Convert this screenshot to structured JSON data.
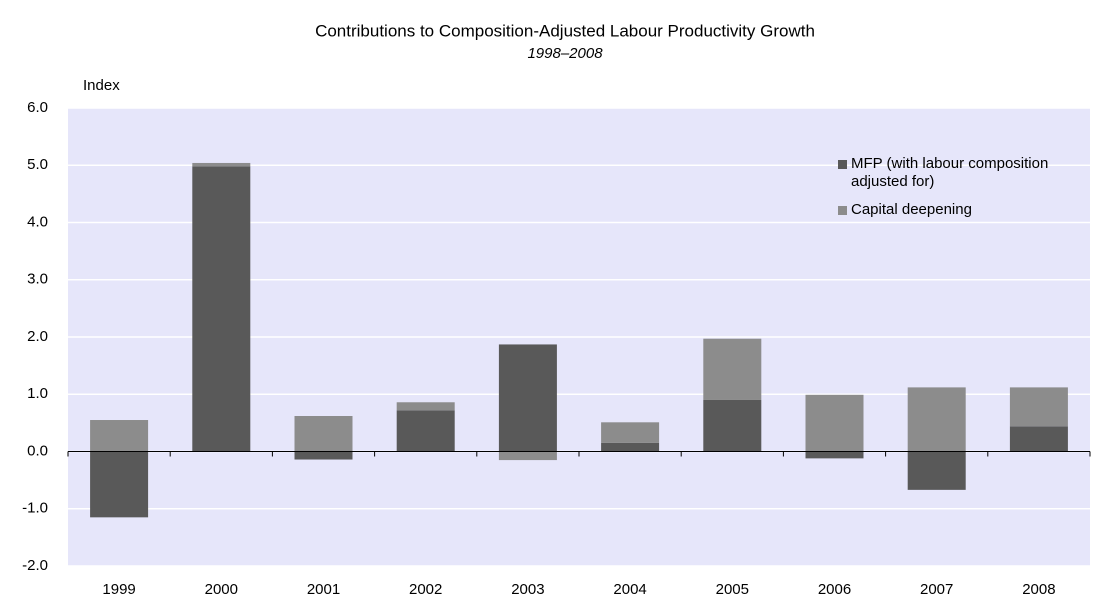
{
  "chart_data": {
    "type": "stacked_bar",
    "title": "Contributions to Composition-Adjusted Labour Productivity Growth",
    "subtitle": "1998–2008",
    "y_label": "Index",
    "categories": [
      "1999",
      "2000",
      "2001",
      "2002",
      "2003",
      "2004",
      "2005",
      "2006",
      "2007",
      "2008"
    ],
    "series": [
      {
        "name": "MFP (with labour composition adjusted for)",
        "color": "#595959",
        "values": [
          -1.15,
          4.98,
          -0.14,
          0.72,
          1.87,
          0.15,
          0.9,
          -0.12,
          -0.67,
          0.44
        ]
      },
      {
        "name": "Capital deepening",
        "color": "#8c8c8c",
        "values": [
          0.55,
          0.06,
          0.62,
          0.14,
          -0.15,
          0.36,
          1.07,
          0.99,
          1.12,
          0.68
        ]
      }
    ],
    "ylim": [
      -2,
      6
    ],
    "yticks": [
      {
        "value": -2,
        "label": "-2.0"
      },
      {
        "value": -1,
        "label": "-1.0"
      },
      {
        "value": 0,
        "label": "0.0"
      },
      {
        "value": 1,
        "label": "1.0"
      },
      {
        "value": 2,
        "label": "2.0"
      },
      {
        "value": 3,
        "label": "3.0"
      },
      {
        "value": 4,
        "label": "4.0"
      },
      {
        "value": 5,
        "label": "5.0"
      },
      {
        "value": 6,
        "label": "6.0"
      }
    ],
    "grid": true,
    "plot_background": "#e6e6fa"
  }
}
